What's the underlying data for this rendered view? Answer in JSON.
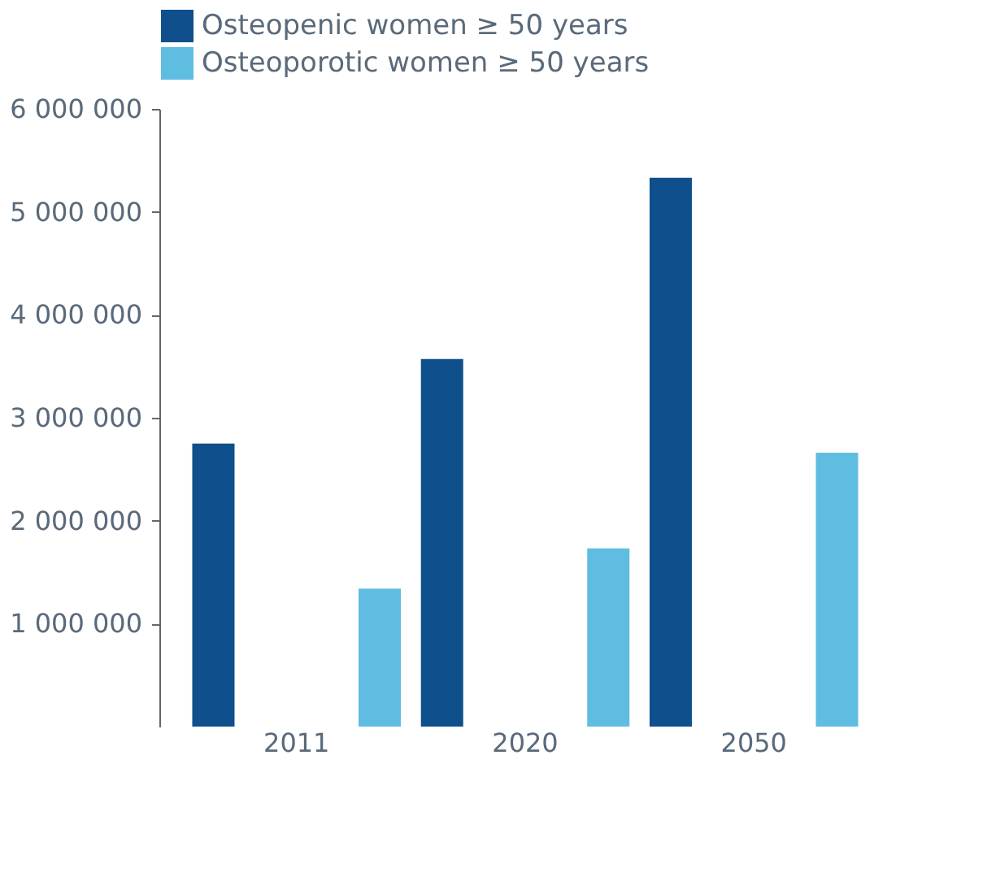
{
  "chart_data": {
    "type": "bar",
    "categories": [
      "2011",
      "2020",
      "2050"
    ],
    "series": [
      {
        "name": "Osteopenic women ≥ 50 years",
        "color": "#0f4f8c",
        "values": [
          2750000,
          3570000,
          5330000
        ]
      },
      {
        "name": "Osteoporotic women ≥ 50 years",
        "color": "#5fbde2",
        "values": [
          1340000,
          1730000,
          2660000
        ]
      }
    ],
    "ylim": [
      0,
      6000000
    ],
    "yticks": [
      {
        "value": 1000000,
        "label": "1 000 000"
      },
      {
        "value": 2000000,
        "label": "2 000 000"
      },
      {
        "value": 3000000,
        "label": "3 000 000"
      },
      {
        "value": 4000000,
        "label": "4 000 000"
      },
      {
        "value": 5000000,
        "label": "5 000 000"
      },
      {
        "value": 6000000,
        "label": "6 000 000"
      }
    ],
    "grid": false,
    "legend": "top"
  }
}
